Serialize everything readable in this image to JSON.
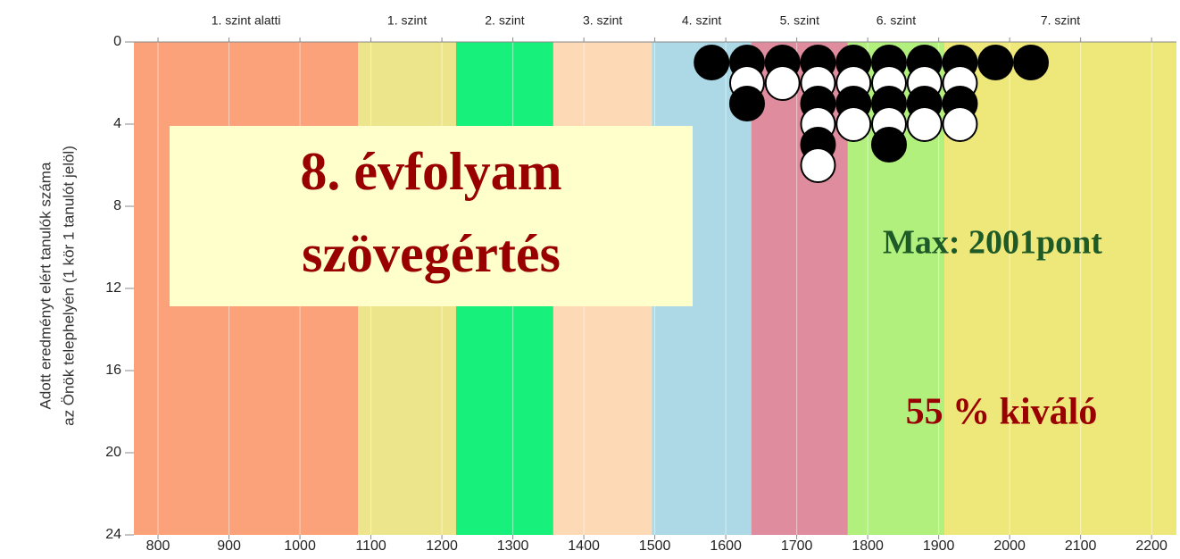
{
  "chart_data": {
    "type": "dot",
    "y_label_lines": [
      "Adott eredményt elért tanulók száma",
      "az Önök telephelyén (1 kör 1 tanulót jelöl)"
    ],
    "title_lines": [
      "8. évfolyam",
      "szövegértés"
    ],
    "annotations": [
      "Max: 2001pont",
      "55 % kiváló"
    ],
    "levels": [
      {
        "name": "1. szint alatti",
        "from": 766,
        "to": 1082,
        "color": "#fca27a"
      },
      {
        "name": "1. szint",
        "from": 1082,
        "to": 1220,
        "color": "#ede58c"
      },
      {
        "name": "2. szint",
        "from": 1220,
        "to": 1357,
        "color": "#17f07a"
      },
      {
        "name": "3. szint",
        "from": 1357,
        "to": 1496,
        "color": "#fdd9b5"
      },
      {
        "name": "4. szint",
        "from": 1496,
        "to": 1636,
        "color": "#add8e6"
      },
      {
        "name": "5. szint",
        "from": 1636,
        "to": 1772,
        "color": "#df8d9e"
      },
      {
        "name": "6. szint",
        "from": 1772,
        "to": 1908,
        "color": "#b2f07e"
      },
      {
        "name": "7. szint",
        "from": 1908,
        "to": 2235,
        "color": "#eee87a"
      }
    ],
    "x": [
      1580,
      1630,
      1680,
      1730,
      1780,
      1830,
      1880,
      1930,
      1980,
      2030
    ],
    "values": [
      1,
      3,
      2,
      6,
      4,
      5,
      4,
      4,
      1,
      1
    ],
    "marker_colors": [
      "#000000",
      "#ffffff"
    ],
    "xlim": [
      766,
      2235
    ],
    "xticks": [
      800,
      900,
      1000,
      1100,
      1200,
      1300,
      1400,
      1500,
      1600,
      1700,
      1800,
      1900,
      2000,
      2100,
      2200
    ],
    "ylim": [
      0,
      24
    ],
    "yticks": [
      0,
      4,
      8,
      12,
      16,
      20,
      24
    ],
    "y_inverted": true
  }
}
